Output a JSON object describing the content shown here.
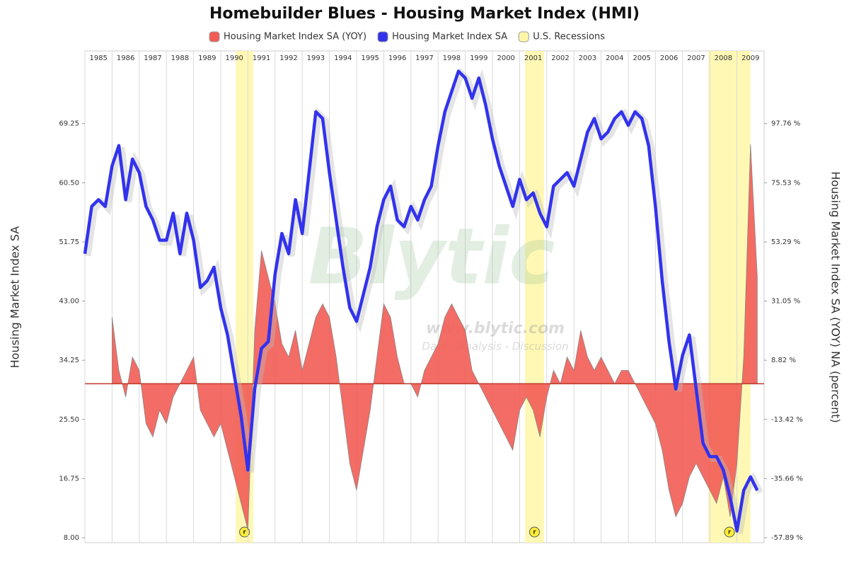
{
  "chart_data": {
    "type": "line-area",
    "title": "Homebuilder Blues - Housing Market Index (HMI)",
    "y_label": "Housing Market Index SA",
    "y2_label": "Housing Market Index SA (YOY) NA (percent)",
    "watermark": [
      "Blytic",
      "www.blytic.com",
      "Data - Analysis - Discussion"
    ],
    "recession_marker": "r",
    "grid": "x",
    "xlim": [
      1985,
      2010
    ],
    "xticks": [
      1985,
      1986,
      1987,
      1988,
      1989,
      1990,
      1991,
      1992,
      1993,
      1994,
      1995,
      1996,
      1997,
      1998,
      1999,
      2000,
      2001,
      2002,
      2003,
      2004,
      2005,
      2006,
      2007,
      2008,
      2009
    ],
    "ylim": [
      8,
      80
    ],
    "yticks": [
      {
        "value": 8,
        "label": "8.00"
      },
      {
        "value": 16.75,
        "label": "16.75"
      },
      {
        "value": 25.5,
        "label": "25.50"
      },
      {
        "value": 34.25,
        "label": "34.25"
      },
      {
        "value": 43,
        "label": "43.00"
      },
      {
        "value": 51.75,
        "label": "51.75"
      },
      {
        "value": 60.5,
        "label": "60.50"
      },
      {
        "value": 69.25,
        "label": "69.25"
      }
    ],
    "y2lim": [
      -57.89,
      125.08
    ],
    "y2ticks": [
      {
        "value": -57.89,
        "label": "-57.89 %"
      },
      {
        "value": -35.66,
        "label": "-35.66 %"
      },
      {
        "value": -13.42,
        "label": "-13.42 %"
      },
      {
        "value": 8.82,
        "label": "8.82 %"
      },
      {
        "value": 31.05,
        "label": "31.05 %"
      },
      {
        "value": 53.29,
        "label": "53.29 %"
      },
      {
        "value": 75.53,
        "label": "75.53 %"
      },
      {
        "value": 97.76,
        "label": "97.76 %"
      }
    ],
    "x": [
      1985,
      1985.25,
      1985.5,
      1985.75,
      1986,
      1986.25,
      1986.5,
      1986.75,
      1987,
      1987.25,
      1987.5,
      1987.75,
      1988,
      1988.25,
      1988.5,
      1988.75,
      1989,
      1989.25,
      1989.5,
      1989.75,
      1990,
      1990.25,
      1990.5,
      1990.75,
      1991,
      1991.25,
      1991.5,
      1991.75,
      1992,
      1992.25,
      1992.5,
      1992.75,
      1993,
      1993.25,
      1993.5,
      1993.75,
      1994,
      1994.25,
      1994.5,
      1994.75,
      1995,
      1995.25,
      1995.5,
      1995.75,
      1996,
      1996.25,
      1996.5,
      1996.75,
      1997,
      1997.25,
      1997.5,
      1997.75,
      1998,
      1998.25,
      1998.5,
      1998.75,
      1999,
      1999.25,
      1999.5,
      1999.75,
      2000,
      2000.25,
      2000.5,
      2000.75,
      2001,
      2001.25,
      2001.5,
      2001.75,
      2002,
      2002.25,
      2002.5,
      2002.75,
      2003,
      2003.25,
      2003.5,
      2003.75,
      2004,
      2004.25,
      2004.5,
      2004.75,
      2005,
      2005.25,
      2005.5,
      2005.75,
      2006,
      2006.25,
      2006.5,
      2006.75,
      2007,
      2007.25,
      2007.5,
      2007.75,
      2008,
      2008.25,
      2008.5,
      2008.75,
      2009,
      2009.25,
      2009.5,
      2009.75
    ],
    "series": [
      {
        "name": "Housing Market Index SA (YOY)",
        "color": "#f25c54",
        "axis": "y2",
        "kind": "area",
        "values": [
          null,
          null,
          null,
          null,
          25,
          5,
          -5,
          10,
          5,
          -15,
          -20,
          -10,
          -15,
          -5,
          0,
          5,
          10,
          -10,
          -15,
          -20,
          -15,
          -25,
          -35,
          -45,
          -55,
          20,
          50,
          40,
          30,
          15,
          10,
          20,
          5,
          15,
          25,
          30,
          25,
          10,
          -10,
          -30,
          -40,
          -25,
          -10,
          10,
          30,
          25,
          10,
          0,
          0,
          -5,
          5,
          10,
          15,
          25,
          30,
          25,
          20,
          5,
          0,
          -5,
          -10,
          -15,
          -20,
          -25,
          -10,
          -5,
          -10,
          -20,
          -5,
          5,
          0,
          10,
          5,
          20,
          10,
          5,
          10,
          5,
          0,
          5,
          5,
          0,
          -5,
          -10,
          -15,
          -25,
          -40,
          -50,
          -45,
          -35,
          -30,
          -35,
          -40,
          -45,
          -35,
          -50,
          -30,
          10,
          90,
          40
        ]
      },
      {
        "name": "Housing Market Index SA",
        "color": "#3232ee",
        "kind": "line",
        "values": [
          50,
          57,
          58,
          57,
          63,
          66,
          58,
          64,
          62,
          57,
          55,
          52,
          52,
          56,
          50,
          56,
          52,
          45,
          46,
          48,
          42,
          38,
          32,
          26,
          18,
          30,
          36,
          37,
          47,
          53,
          50,
          58,
          53,
          62,
          71,
          70,
          62,
          55,
          48,
          42,
          40,
          44,
          48,
          54,
          58,
          60,
          55,
          54,
          57,
          55,
          58,
          60,
          66,
          71,
          74,
          77,
          76,
          73,
          76,
          72,
          67,
          63,
          60,
          57,
          61,
          58,
          59,
          56,
          54,
          60,
          61,
          62,
          60,
          64,
          68,
          70,
          67,
          68,
          70,
          71,
          69,
          71,
          70,
          66,
          57,
          46,
          37,
          30,
          35,
          38,
          30,
          22,
          20,
          20,
          18,
          14,
          9,
          15,
          17,
          15
        ]
      },
      {
        "name": "U.S. Recessions",
        "color": "#fff7a8",
        "kind": "ranges",
        "ranges": [
          [
            1990.55,
            1991.2
          ],
          [
            2001.2,
            2001.9
          ],
          [
            2007.95,
            2009.5
          ]
        ]
      }
    ]
  }
}
